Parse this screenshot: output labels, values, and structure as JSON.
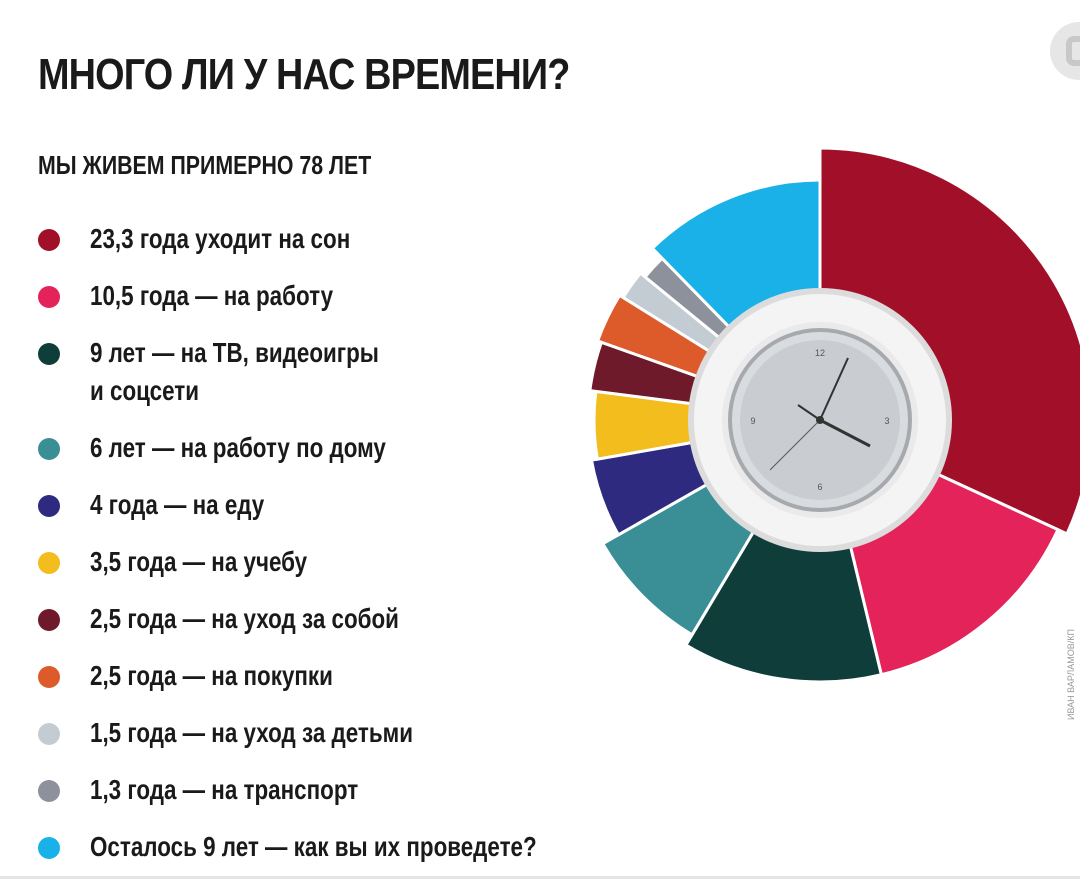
{
  "title": "МНОГО ЛИ У НАС ВРЕМЕНИ?",
  "subtitle": "МЫ ЖИВЕМ ПРИМЕРНО 78 ЛЕТ",
  "credit": "ИВАН ВАРЛАМОВ/КП",
  "chart_data": {
    "type": "pie",
    "title": "МНОГО ЛИ У НАС ВРЕМЕНИ?",
    "subtitle": "МЫ ЖИВЕМ ПРИМЕРНО 78 ЛЕТ",
    "legend_position": "left",
    "donut": true,
    "center_graphic": "clock-icon",
    "categories": [
      {
        "label": "23,3 года уходит на сон",
        "value": 23.3,
        "color": "#a11028"
      },
      {
        "label": "10,5 года — на работу",
        "value": 10.5,
        "color": "#e3235a"
      },
      {
        "label": "9 лет — на ТВ, видеоигры и соцсети",
        "label_lines": [
          "9 лет — на ТВ, видеоигры",
          "и соцсети"
        ],
        "value": 9,
        "color": "#0f3d3a"
      },
      {
        "label": "6 лет — на работу по дому",
        "value": 6,
        "color": "#3a8f96"
      },
      {
        "label": "4 года — на еду",
        "value": 4,
        "color": "#2e2a7f"
      },
      {
        "label": "3,5 года — на учебу",
        "value": 3.5,
        "color": "#f2bd1d"
      },
      {
        "label": "2,5 года — на уход за собой",
        "value": 2.5,
        "color": "#6e1a2a"
      },
      {
        "label": "2,5 года — на покупки",
        "value": 2.5,
        "color": "#dd5a2a"
      },
      {
        "label": "1,5 года — на уход за детьми",
        "value": 1.5,
        "color": "#c4ccd3"
      },
      {
        "label": "1,3 года — на транспорт",
        "value": 1.3,
        "color": "#8c919b"
      },
      {
        "label": "Осталось 9 лет — как вы их проведете?",
        "value": 9,
        "color": "#1ab0e8"
      }
    ]
  }
}
